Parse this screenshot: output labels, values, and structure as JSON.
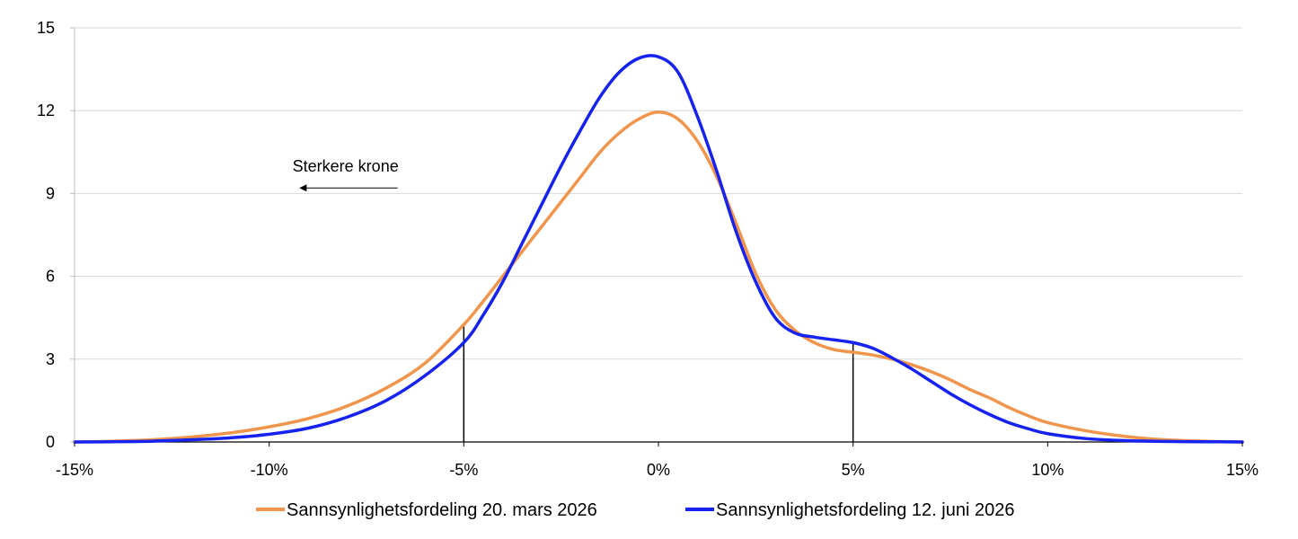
{
  "chart_data": {
    "type": "line",
    "title": "",
    "xlabel": "",
    "ylabel": "",
    "xlim": [
      -15,
      15
    ],
    "ylim": [
      0,
      15
    ],
    "x_ticks": [
      -15,
      -10,
      -5,
      0,
      5,
      10,
      15
    ],
    "x_tick_labels": [
      "-15%",
      "-10%",
      "-5%",
      "0%",
      "5%",
      "10%",
      "15%"
    ],
    "y_ticks": [
      0,
      3,
      6,
      9,
      12,
      15
    ],
    "y_tick_labels": [
      "0",
      "3",
      "6",
      "9",
      "12",
      "15"
    ],
    "grid": "horizontal",
    "legend_position": "bottom",
    "series": [
      {
        "name": "Sannsynlighetsfordeling 20. mars 2026",
        "color": "#F0954B",
        "x": [
          -15,
          -14,
          -13,
          -12,
          -11,
          -10,
          -9,
          -8,
          -7,
          -6,
          -5,
          -4.5,
          -4,
          -3.5,
          -3,
          -2.5,
          -2,
          -1.5,
          -1,
          -0.5,
          0,
          0.5,
          1,
          1.5,
          2,
          2.5,
          3,
          3.5,
          4,
          4.5,
          5,
          5.5,
          6,
          6.5,
          7,
          7.5,
          8,
          8.5,
          9,
          9.5,
          10,
          11,
          12,
          13,
          14,
          15
        ],
        "values": [
          0.0,
          0.03,
          0.08,
          0.18,
          0.33,
          0.55,
          0.85,
          1.3,
          1.95,
          2.85,
          4.25,
          5.1,
          6.0,
          6.9,
          7.8,
          8.7,
          9.6,
          10.5,
          11.2,
          11.7,
          11.95,
          11.7,
          10.9,
          9.6,
          7.9,
          6.1,
          4.8,
          4.05,
          3.6,
          3.35,
          3.25,
          3.15,
          3.0,
          2.8,
          2.55,
          2.25,
          1.9,
          1.6,
          1.25,
          0.95,
          0.7,
          0.4,
          0.2,
          0.08,
          0.03,
          0.0
        ]
      },
      {
        "name": "Sannsynlighetsfordeling 12. juni 2026",
        "color": "#1522F0",
        "x": [
          -15,
          -14,
          -13,
          -12,
          -11,
          -10,
          -9,
          -8,
          -7,
          -6,
          -5,
          -4.5,
          -4,
          -3.5,
          -3,
          -2.5,
          -2,
          -1.5,
          -1,
          -0.5,
          0,
          0.5,
          1,
          1.5,
          2,
          2.5,
          3,
          3.5,
          4,
          4.5,
          5,
          5.5,
          6,
          6.5,
          7,
          7.5,
          8,
          8.5,
          9,
          9.5,
          10,
          11,
          12,
          13,
          14,
          15
        ],
        "values": [
          0.0,
          0.01,
          0.03,
          0.08,
          0.15,
          0.28,
          0.5,
          0.9,
          1.5,
          2.4,
          3.6,
          4.6,
          5.8,
          7.2,
          8.6,
          10.0,
          11.3,
          12.5,
          13.4,
          13.9,
          13.95,
          13.4,
          11.8,
          9.8,
          7.6,
          5.8,
          4.5,
          3.95,
          3.8,
          3.7,
          3.6,
          3.4,
          3.05,
          2.65,
          2.2,
          1.75,
          1.35,
          1.0,
          0.7,
          0.48,
          0.3,
          0.12,
          0.05,
          0.02,
          0.01,
          0.0
        ]
      }
    ],
    "markers": [
      {
        "x": -5,
        "y": 4.2
      },
      {
        "x": 5,
        "y": 3.6
      }
    ],
    "annotation": {
      "text": "Sterkere krone",
      "arrow_from_x": -6.7,
      "arrow_to_x": -9.2,
      "arrow_y": 9.2,
      "text_x": -9.4,
      "text_y": 9.8
    }
  }
}
